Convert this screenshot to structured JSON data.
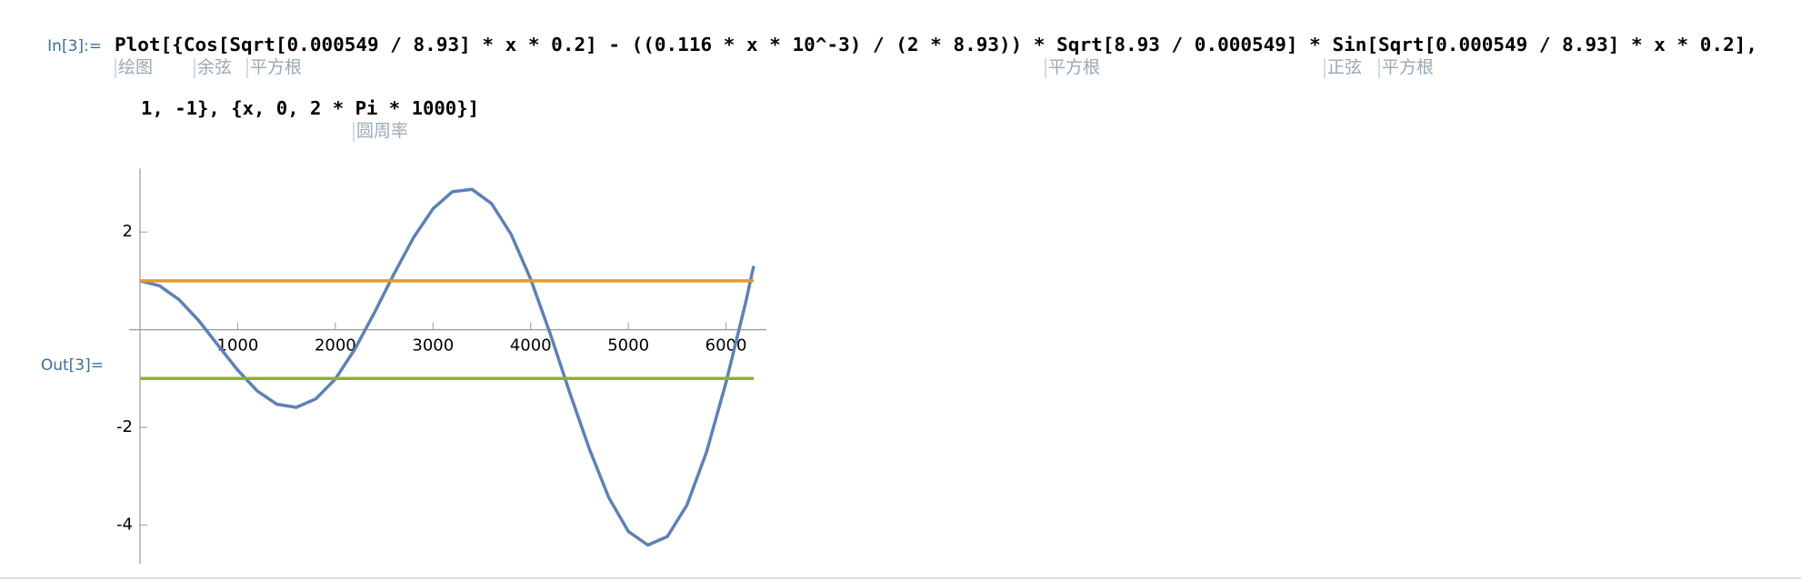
{
  "input_label": "In[3]:=",
  "output_label": "Out[3]=",
  "code_lines": [
    "Plot[{Cos[Sqrt[0.000549 / 8.93] * x * 0.2] - ((0.116 * x * 10^-3) / (2 * 8.93)) * Sqrt[8.93 / 0.000549] * Sin[Sqrt[0.000549 / 8.93] * x * 0.2],",
    "1, -1}, {x, 0, 2 * Pi * 1000}]"
  ],
  "hints": [
    "绘图",
    "余弦",
    "平方根",
    "平方根",
    "正弦",
    "平方根",
    "圆周率"
  ],
  "chart_data": {
    "type": "line",
    "series": [
      {
        "color": "#5e81b5",
        "x": [
          0,
          200,
          400,
          600,
          800,
          1000,
          1200,
          1400,
          1600,
          1800,
          2000,
          2200,
          2400,
          2600,
          2800,
          3000,
          3200,
          3400,
          3600,
          3800,
          4000,
          4200,
          4400,
          4600,
          4800,
          5000,
          5200,
          5400,
          5600,
          5800,
          6000,
          6200,
          6283.19
        ],
        "values": [
          1,
          0.9,
          0.615,
          0.188,
          -0.32,
          -0.826,
          -1.252,
          -1.526,
          -1.59,
          -1.416,
          -1.009,
          -0.399,
          0.346,
          1.14,
          1.884,
          2.477,
          2.829,
          2.874,
          2.583,
          1.953,
          1.035,
          -0.082,
          -1.288,
          -2.439,
          -3.441,
          -4.129,
          -4.411,
          -4.235,
          -3.591,
          -2.507,
          -1.08,
          0.549,
          1.306
        ]
      },
      {
        "color": "#e19c24",
        "x": [
          0,
          6283.19
        ],
        "values": [
          1,
          1
        ]
      },
      {
        "color": "#8fb032",
        "x": [
          0,
          6283.19
        ],
        "values": [
          -1,
          -1
        ]
      }
    ],
    "xlim": [
      0,
      6283.19
    ],
    "ylim": [
      -4.8,
      3.3
    ],
    "xticks": [
      1000,
      2000,
      3000,
      4000,
      5000,
      6000
    ],
    "yticks": [
      -4,
      -2,
      2
    ]
  }
}
